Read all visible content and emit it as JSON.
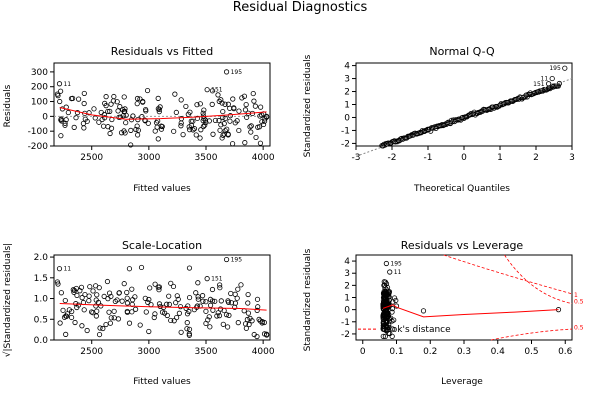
{
  "figure": {
    "title": "Residual Diagnostics"
  },
  "chart_data": [
    {
      "type": "scatter",
      "title": "Residuals vs Fitted",
      "xlabel": "Fitted values",
      "ylabel": "Residuals",
      "xlim": [
        2170,
        4060
      ],
      "ylim": [
        -200,
        360
      ],
      "xticks": [
        2500,
        3000,
        3500,
        4000
      ],
      "yticks": [
        -200,
        -100,
        0,
        100,
        200,
        300
      ],
      "grid": false,
      "hline": 0,
      "annotations": [
        {
          "label": "11",
          "x": 2218,
          "y": 220
        },
        {
          "label": "195",
          "x": 3680,
          "y": 300
        },
        {
          "label": "151",
          "x": 3510,
          "y": 180
        }
      ],
      "smooth": [
        [
          2220,
          60
        ],
        [
          2500,
          10
        ],
        [
          2800,
          -20
        ],
        [
          3100,
          -15
        ],
        [
          3400,
          -5
        ],
        [
          3700,
          10
        ],
        [
          4030,
          30
        ]
      ],
      "point_style": "open-circle",
      "line_color": "#ff0000"
    },
    {
      "type": "scatter",
      "title": "Normal Q-Q",
      "xlabel": "Theoretical Quantiles",
      "ylabel": "Standardized residuals",
      "xlim": [
        -3,
        3
      ],
      "ylim": [
        -2.2,
        4.2
      ],
      "xticks": [
        -3,
        -2,
        -1,
        0,
        1,
        2,
        3
      ],
      "yticks": [
        -2,
        -1,
        0,
        1,
        2,
        3,
        4
      ],
      "grid": false,
      "annotations": [
        {
          "label": "195",
          "x": 2.8,
          "y": 3.8
        },
        {
          "label": "11",
          "x": 2.45,
          "y": 3.0
        },
        {
          "label": "151",
          "x": 2.35,
          "y": 2.6
        }
      ],
      "ref_line": [
        [
          -3,
          -3
        ],
        [
          3,
          3
        ]
      ],
      "point_style": "open-circle"
    },
    {
      "type": "scatter",
      "title": "Scale-Location",
      "xlabel": "Fitted values",
      "ylabel": "√|Standardized residuals|",
      "xlim": [
        2170,
        4060
      ],
      "ylim": [
        0,
        2.05
      ],
      "xticks": [
        2500,
        3000,
        3500,
        4000
      ],
      "yticks": [
        0.0,
        0.5,
        1.0,
        1.5,
        2.0
      ],
      "grid": false,
      "annotations": [
        {
          "label": "11",
          "x": 2218,
          "y": 1.72
        },
        {
          "label": "195",
          "x": 3680,
          "y": 1.94
        },
        {
          "label": "151",
          "x": 3510,
          "y": 1.48
        }
      ],
      "smooth": [
        [
          2220,
          0.88
        ],
        [
          2600,
          0.84
        ],
        [
          3000,
          0.8
        ],
        [
          3400,
          0.78
        ],
        [
          3800,
          0.76
        ],
        [
          4030,
          0.72
        ]
      ],
      "point_style": "open-circle",
      "line_color": "#ff0000"
    },
    {
      "type": "scatter",
      "title": "Residuals vs Leverage",
      "xlabel": "Leverage",
      "ylabel": "Standardized residuals",
      "xlim": [
        -0.02,
        0.62
      ],
      "ylim": [
        -2.5,
        4.5
      ],
      "xticks": [
        0.0,
        0.1,
        0.2,
        0.3,
        0.4,
        0.5,
        0.6
      ],
      "yticks": [
        -2,
        -1,
        0,
        1,
        2,
        3,
        4
      ],
      "grid": false,
      "annotations": [
        {
          "label": "195",
          "x": 0.07,
          "y": 3.8
        },
        {
          "label": "11",
          "x": 0.08,
          "y": 3.1
        }
      ],
      "smooth": [
        [
          0.06,
          0.1
        ],
        [
          0.09,
          0.4
        ],
        [
          0.1,
          0.2
        ],
        [
          0.18,
          -0.6
        ],
        [
          0.3,
          -0.4
        ],
        [
          0.45,
          -0.2
        ],
        [
          0.58,
          0.0
        ]
      ],
      "cooks_distance_legend": "Cook's distance",
      "contour_labels": [
        "1",
        "0.5",
        "0.5"
      ],
      "point_style": "open-circle",
      "line_color": "#ff0000"
    }
  ]
}
